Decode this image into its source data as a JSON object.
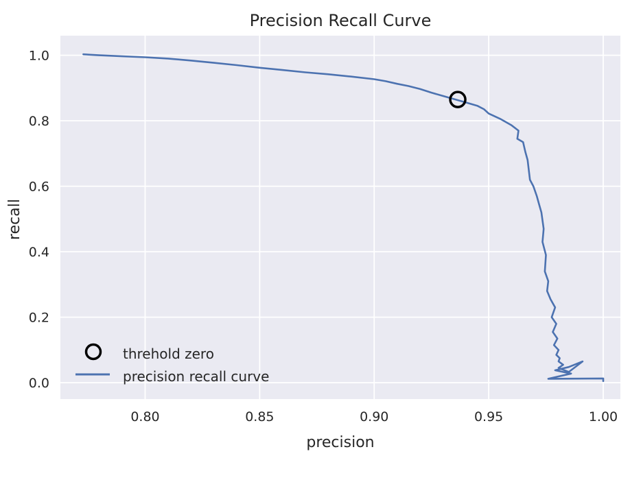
{
  "chart_data": {
    "type": "line",
    "title": "Precision Recall Curve",
    "xlabel": "precision",
    "ylabel": "recall",
    "xlim": [
      0.763,
      1.0075
    ],
    "ylim": [
      -0.05,
      1.06
    ],
    "xticks": [
      0.8,
      0.85,
      0.9,
      0.95,
      1.0
    ],
    "xtick_labels": [
      "0.80",
      "0.85",
      "0.90",
      "0.95",
      "1.00"
    ],
    "yticks": [
      0.0,
      0.2,
      0.4,
      0.6,
      0.8,
      1.0
    ],
    "ytick_labels": [
      "0.0",
      "0.2",
      "0.4",
      "0.6",
      "0.8",
      "1.0"
    ],
    "grid": true,
    "background": "#eaeaf2",
    "grid_color": "#ffffff",
    "legend_position": "lower-left",
    "series": [
      {
        "name": "precision recall curve",
        "color": "#4c72b0",
        "x": [
          0.773,
          0.78,
          0.79,
          0.8,
          0.81,
          0.82,
          0.83,
          0.84,
          0.85,
          0.86,
          0.87,
          0.88,
          0.89,
          0.9,
          0.905,
          0.91,
          0.915,
          0.92,
          0.925,
          0.93,
          0.935,
          0.94,
          0.945,
          0.948,
          0.95,
          0.955,
          0.96,
          0.963,
          0.9625,
          0.965,
          0.966,
          0.967,
          0.968,
          0.9695,
          0.971,
          0.972,
          0.973,
          0.974,
          0.9735,
          0.975,
          0.9745,
          0.976,
          0.9755,
          0.977,
          0.979,
          0.9775,
          0.9795,
          0.978,
          0.98,
          0.9785,
          0.9805,
          0.9795,
          0.981,
          0.9805,
          0.9825,
          0.9805,
          0.985,
          0.991,
          0.985,
          0.979,
          0.986,
          0.976,
          1.0,
          1.0
        ],
        "y": [
          1.003,
          1.0,
          0.997,
          0.994,
          0.99,
          0.984,
          0.977,
          0.97,
          0.962,
          0.955,
          0.948,
          0.942,
          0.935,
          0.927,
          0.921,
          0.913,
          0.906,
          0.897,
          0.886,
          0.876,
          0.866,
          0.856,
          0.846,
          0.835,
          0.822,
          0.806,
          0.786,
          0.77,
          0.745,
          0.735,
          0.705,
          0.68,
          0.62,
          0.6,
          0.57,
          0.545,
          0.52,
          0.47,
          0.43,
          0.39,
          0.34,
          0.31,
          0.28,
          0.255,
          0.23,
          0.2,
          0.18,
          0.155,
          0.135,
          0.115,
          0.1,
          0.085,
          0.075,
          0.065,
          0.055,
          0.045,
          0.033,
          0.065,
          0.048,
          0.038,
          0.028,
          0.012,
          0.013,
          0.005
        ]
      },
      {
        "name": "threhold zero",
        "color": "#000000",
        "marker": "open-circle",
        "x": [
          0.9365
        ],
        "y": [
          0.865
        ]
      }
    ]
  }
}
